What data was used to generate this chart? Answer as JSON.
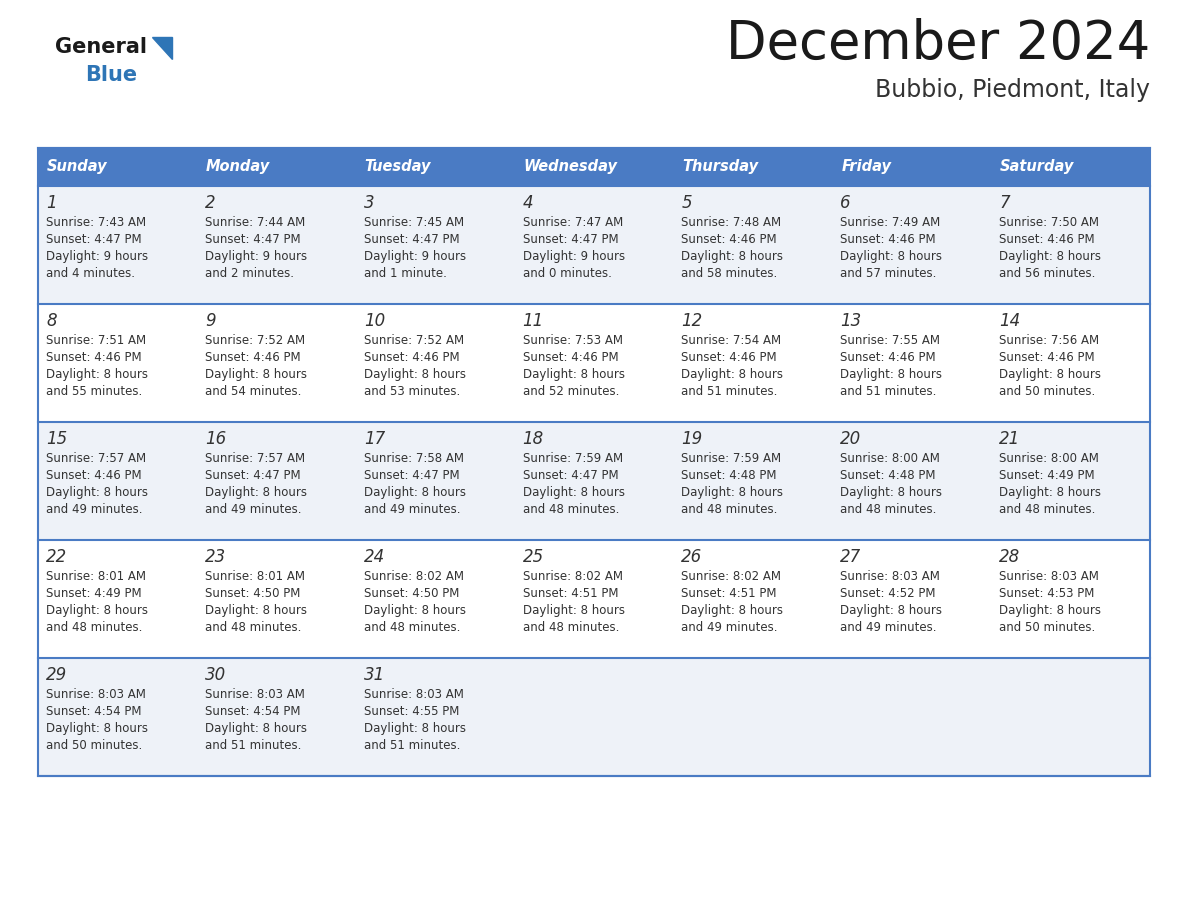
{
  "title": "December 2024",
  "subtitle": "Bubbio, Piedmont, Italy",
  "days_of_week": [
    "Sunday",
    "Monday",
    "Tuesday",
    "Wednesday",
    "Thursday",
    "Friday",
    "Saturday"
  ],
  "header_bg": "#4a7bc4",
  "header_text": "#FFFFFF",
  "row_bg_odd": "#eef2f8",
  "row_bg_even": "#FFFFFF",
  "grid_line_color": "#4a7bc4",
  "title_color": "#1a1a1a",
  "subtitle_color": "#333333",
  "cell_text_color": "#333333",
  "day_num_color": "#333333",
  "logo_general_color": "#1a1a1a",
  "logo_blue_color": "#2E75B6",
  "calendar_data": [
    [
      {
        "day": "1",
        "sunrise": "7:43 AM",
        "sunset": "4:47 PM",
        "daylight1": "9 hours",
        "daylight2": "and 4 minutes."
      },
      {
        "day": "2",
        "sunrise": "7:44 AM",
        "sunset": "4:47 PM",
        "daylight1": "9 hours",
        "daylight2": "and 2 minutes."
      },
      {
        "day": "3",
        "sunrise": "7:45 AM",
        "sunset": "4:47 PM",
        "daylight1": "9 hours",
        "daylight2": "and 1 minute."
      },
      {
        "day": "4",
        "sunrise": "7:47 AM",
        "sunset": "4:47 PM",
        "daylight1": "9 hours",
        "daylight2": "and 0 minutes."
      },
      {
        "day": "5",
        "sunrise": "7:48 AM",
        "sunset": "4:46 PM",
        "daylight1": "8 hours",
        "daylight2": "and 58 minutes."
      },
      {
        "day": "6",
        "sunrise": "7:49 AM",
        "sunset": "4:46 PM",
        "daylight1": "8 hours",
        "daylight2": "and 57 minutes."
      },
      {
        "day": "7",
        "sunrise": "7:50 AM",
        "sunset": "4:46 PM",
        "daylight1": "8 hours",
        "daylight2": "and 56 minutes."
      }
    ],
    [
      {
        "day": "8",
        "sunrise": "7:51 AM",
        "sunset": "4:46 PM",
        "daylight1": "8 hours",
        "daylight2": "and 55 minutes."
      },
      {
        "day": "9",
        "sunrise": "7:52 AM",
        "sunset": "4:46 PM",
        "daylight1": "8 hours",
        "daylight2": "and 54 minutes."
      },
      {
        "day": "10",
        "sunrise": "7:52 AM",
        "sunset": "4:46 PM",
        "daylight1": "8 hours",
        "daylight2": "and 53 minutes."
      },
      {
        "day": "11",
        "sunrise": "7:53 AM",
        "sunset": "4:46 PM",
        "daylight1": "8 hours",
        "daylight2": "and 52 minutes."
      },
      {
        "day": "12",
        "sunrise": "7:54 AM",
        "sunset": "4:46 PM",
        "daylight1": "8 hours",
        "daylight2": "and 51 minutes."
      },
      {
        "day": "13",
        "sunrise": "7:55 AM",
        "sunset": "4:46 PM",
        "daylight1": "8 hours",
        "daylight2": "and 51 minutes."
      },
      {
        "day": "14",
        "sunrise": "7:56 AM",
        "sunset": "4:46 PM",
        "daylight1": "8 hours",
        "daylight2": "and 50 minutes."
      }
    ],
    [
      {
        "day": "15",
        "sunrise": "7:57 AM",
        "sunset": "4:46 PM",
        "daylight1": "8 hours",
        "daylight2": "and 49 minutes."
      },
      {
        "day": "16",
        "sunrise": "7:57 AM",
        "sunset": "4:47 PM",
        "daylight1": "8 hours",
        "daylight2": "and 49 minutes."
      },
      {
        "day": "17",
        "sunrise": "7:58 AM",
        "sunset": "4:47 PM",
        "daylight1": "8 hours",
        "daylight2": "and 49 minutes."
      },
      {
        "day": "18",
        "sunrise": "7:59 AM",
        "sunset": "4:47 PM",
        "daylight1": "8 hours",
        "daylight2": "and 48 minutes."
      },
      {
        "day": "19",
        "sunrise": "7:59 AM",
        "sunset": "4:48 PM",
        "daylight1": "8 hours",
        "daylight2": "and 48 minutes."
      },
      {
        "day": "20",
        "sunrise": "8:00 AM",
        "sunset": "4:48 PM",
        "daylight1": "8 hours",
        "daylight2": "and 48 minutes."
      },
      {
        "day": "21",
        "sunrise": "8:00 AM",
        "sunset": "4:49 PM",
        "daylight1": "8 hours",
        "daylight2": "and 48 minutes."
      }
    ],
    [
      {
        "day": "22",
        "sunrise": "8:01 AM",
        "sunset": "4:49 PM",
        "daylight1": "8 hours",
        "daylight2": "and 48 minutes."
      },
      {
        "day": "23",
        "sunrise": "8:01 AM",
        "sunset": "4:50 PM",
        "daylight1": "8 hours",
        "daylight2": "and 48 minutes."
      },
      {
        "day": "24",
        "sunrise": "8:02 AM",
        "sunset": "4:50 PM",
        "daylight1": "8 hours",
        "daylight2": "and 48 minutes."
      },
      {
        "day": "25",
        "sunrise": "8:02 AM",
        "sunset": "4:51 PM",
        "daylight1": "8 hours",
        "daylight2": "and 48 minutes."
      },
      {
        "day": "26",
        "sunrise": "8:02 AM",
        "sunset": "4:51 PM",
        "daylight1": "8 hours",
        "daylight2": "and 49 minutes."
      },
      {
        "day": "27",
        "sunrise": "8:03 AM",
        "sunset": "4:52 PM",
        "daylight1": "8 hours",
        "daylight2": "and 49 minutes."
      },
      {
        "day": "28",
        "sunrise": "8:03 AM",
        "sunset": "4:53 PM",
        "daylight1": "8 hours",
        "daylight2": "and 50 minutes."
      }
    ],
    [
      {
        "day": "29",
        "sunrise": "8:03 AM",
        "sunset": "4:54 PM",
        "daylight1": "8 hours",
        "daylight2": "and 50 minutes."
      },
      {
        "day": "30",
        "sunrise": "8:03 AM",
        "sunset": "4:54 PM",
        "daylight1": "8 hours",
        "daylight2": "and 51 minutes."
      },
      {
        "day": "31",
        "sunrise": "8:03 AM",
        "sunset": "4:55 PM",
        "daylight1": "8 hours",
        "daylight2": "and 51 minutes."
      },
      null,
      null,
      null,
      null
    ]
  ]
}
